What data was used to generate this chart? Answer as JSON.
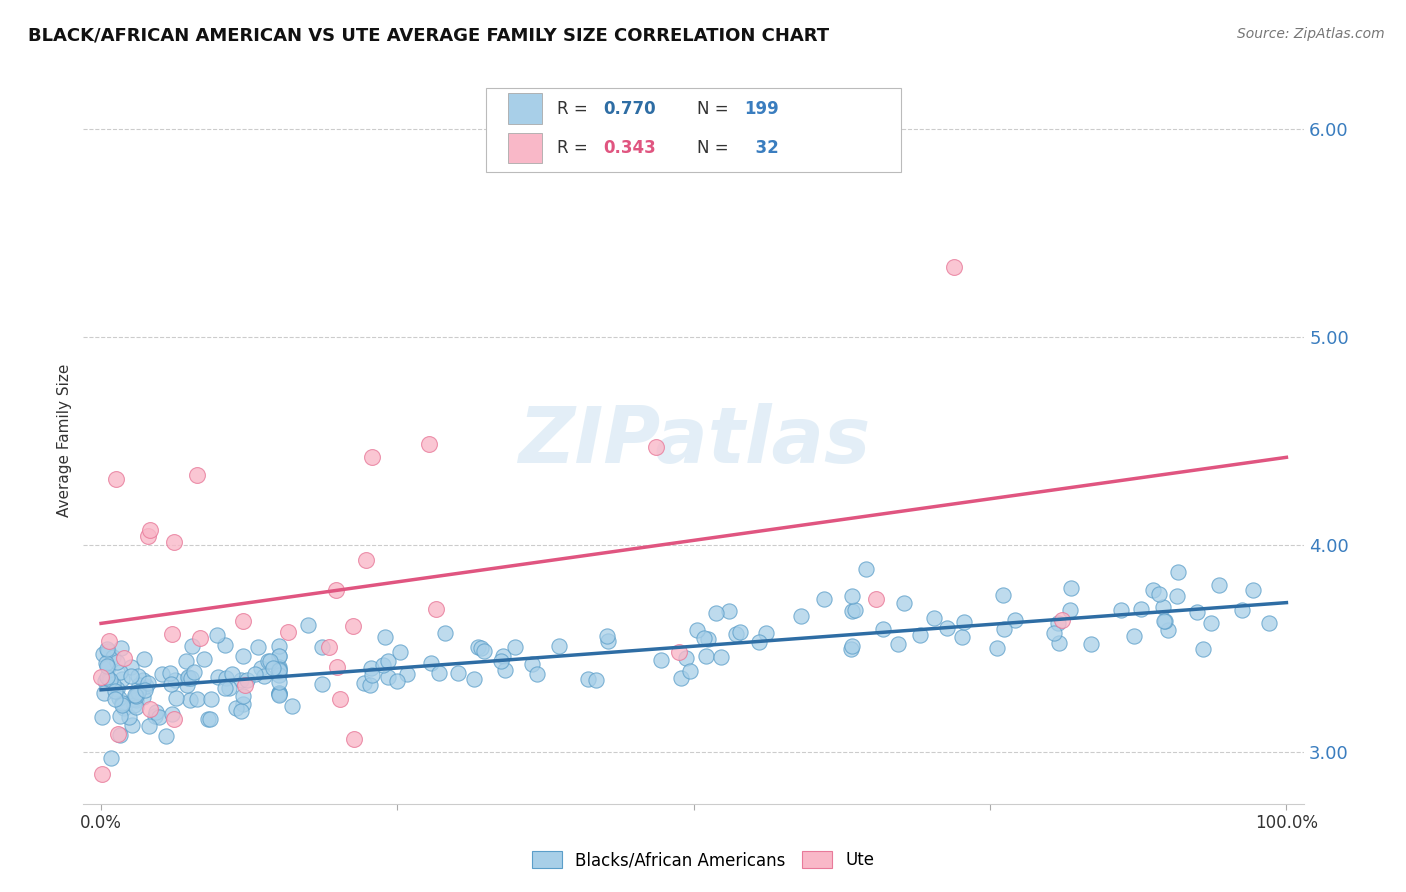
{
  "title": "BLACK/AFRICAN AMERICAN VS UTE AVERAGE FAMILY SIZE CORRELATION CHART",
  "source": "Source: ZipAtlas.com",
  "ylabel": "Average Family Size",
  "ylim": [
    2.75,
    6.25
  ],
  "yticks": [
    3.0,
    4.0,
    5.0,
    6.0
  ],
  "background_color": "#ffffff",
  "watermark": "ZIPatlas",
  "legend_r1_prefix": "R = ",
  "legend_r1_val": "0.770",
  "legend_n1_prefix": "N = ",
  "legend_n1_val": "199",
  "legend_r2_prefix": "R = ",
  "legend_r2_val": "0.343",
  "legend_n2_prefix": "N =  ",
  "legend_n2_val": "32",
  "blue_color": "#a8cfe8",
  "blue_edge_color": "#5b9ec9",
  "blue_line_color": "#2e6da4",
  "pink_color": "#f9b8c8",
  "pink_edge_color": "#e87a9a",
  "pink_line_color": "#e05580",
  "tick_label_color": "#3a7dbf",
  "blue_n": 199,
  "pink_n": 32,
  "blue_intercept": 3.3,
  "blue_slope": 0.42,
  "pink_intercept": 3.62,
  "pink_slope": 0.8,
  "seed_blue": 42,
  "seed_pink": 7
}
